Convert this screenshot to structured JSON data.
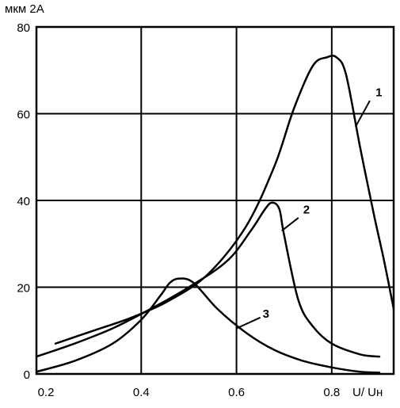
{
  "chart_data": {
    "type": "line",
    "title": "",
    "ylabel": "мкм 2А",
    "xlabel": "U/ Uн",
    "xlim": [
      0.18,
      0.93
    ],
    "ylim": [
      0,
      80
    ],
    "x_ticks": [
      "0.2",
      "0.4",
      "0.6",
      "0.8"
    ],
    "y_ticks": [
      "0",
      "20",
      "40",
      "60",
      "80"
    ],
    "grid": true,
    "series": [
      {
        "name": "1",
        "x": [
          0.22,
          0.3,
          0.38,
          0.46,
          0.54,
          0.62,
          0.68,
          0.72,
          0.76,
          0.79,
          0.81,
          0.83,
          0.86,
          0.89,
          0.91,
          0.93
        ],
        "y": [
          7,
          10,
          13,
          17,
          23,
          34,
          48,
          61,
          71,
          73,
          73,
          69,
          52,
          36,
          26,
          15
        ]
      },
      {
        "name": "2",
        "x": [
          0.18,
          0.26,
          0.34,
          0.42,
          0.5,
          0.58,
          0.63,
          0.66,
          0.675,
          0.69,
          0.7,
          0.73,
          0.76,
          0.8,
          0.86,
          0.9
        ],
        "y": [
          4,
          7,
          10.5,
          15,
          20,
          26,
          33,
          38,
          39.5,
          38,
          32,
          17,
          11,
          7,
          4.5,
          4
        ]
      },
      {
        "name": "3",
        "x": [
          0.18,
          0.26,
          0.34,
          0.4,
          0.44,
          0.46,
          0.48,
          0.51,
          0.56,
          0.62,
          0.68,
          0.74,
          0.8,
          0.86,
          0.9
        ],
        "y": [
          0.5,
          3,
          7,
          12.5,
          18,
          21,
          22,
          21,
          15,
          9.5,
          5.5,
          3,
          1.5,
          0.5,
          0.3
        ]
      }
    ],
    "annotations": [
      "1",
      "2",
      "3"
    ]
  }
}
